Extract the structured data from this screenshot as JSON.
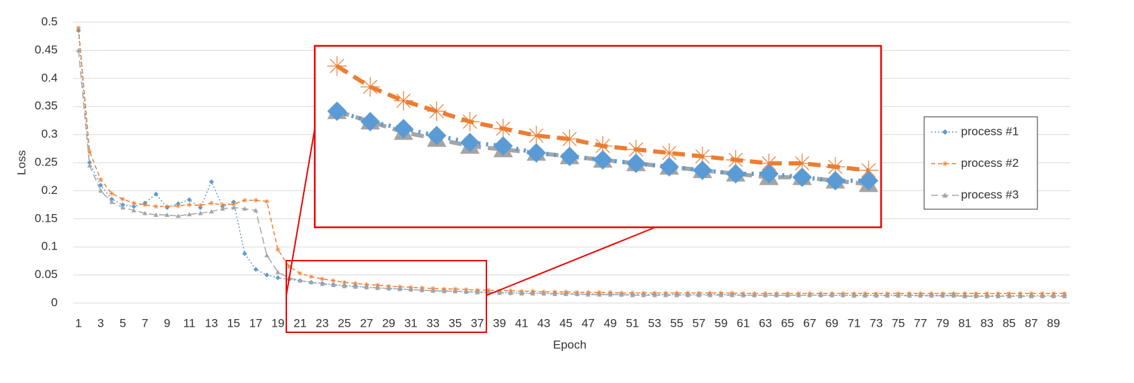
{
  "chart_data": {
    "type": "line",
    "x_label": "Epoch",
    "y_label": "Loss",
    "categories": [
      1,
      null,
      3,
      null,
      5,
      null,
      7,
      null,
      9,
      null,
      11,
      null,
      13,
      null,
      15,
      null,
      17,
      null,
      19,
      null,
      21,
      null,
      23,
      null,
      25,
      null,
      27,
      null,
      29,
      null,
      31,
      null,
      33,
      null,
      35,
      null,
      37,
      null,
      39,
      null,
      41,
      null,
      43,
      null,
      45,
      null,
      47,
      null,
      49,
      null,
      51,
      null,
      53,
      null,
      55,
      null,
      57,
      null,
      59,
      null,
      61,
      null,
      63,
      null,
      65,
      null,
      67,
      null,
      69,
      null,
      71,
      null,
      73,
      null,
      75,
      null,
      77,
      null,
      79,
      null,
      81,
      null,
      83,
      null,
      85,
      null,
      87,
      null,
      89,
      null
    ],
    "ylim": [
      0,
      0.5
    ],
    "yticks": [
      0,
      0.05,
      0.1,
      0.15,
      0.2,
      0.25,
      0.3,
      0.35,
      0.4,
      0.45,
      0.5
    ],
    "grid": true,
    "series": [
      {
        "name": "process #1",
        "color": "#5b9bd5",
        "marker": "diamond",
        "dash": "dotted",
        "values": [
          0.485,
          0.25,
          0.21,
          0.185,
          0.175,
          0.172,
          0.178,
          0.194,
          0.17,
          0.177,
          0.184,
          0.17,
          0.216,
          0.172,
          0.18,
          0.088,
          0.06,
          0.05,
          0.045,
          0.042,
          0.04,
          0.037,
          0.035,
          0.033,
          0.031,
          0.03,
          0.028,
          0.027,
          0.026,
          0.025,
          0.024,
          0.023,
          0.022,
          0.022,
          0.021,
          0.02,
          0.02,
          0.019,
          0.019,
          0.018,
          0.018,
          0.018,
          0.017,
          0.017,
          0.017,
          0.016,
          0.016,
          0.016,
          0.016,
          0.015,
          0.015,
          0.015,
          0.015,
          0.015,
          0.015,
          0.015,
          0.015,
          0.015,
          0.015,
          0.015,
          0.014,
          0.014,
          0.014,
          0.014,
          0.014,
          0.014,
          0.014,
          0.014,
          0.014,
          0.014,
          0.014,
          0.014,
          0.014,
          0.014,
          0.014,
          0.014,
          0.014,
          0.014,
          0.014,
          0.014,
          0.013,
          0.013,
          0.013,
          0.013,
          0.013,
          0.013,
          0.013,
          0.013,
          0.013,
          0.013
        ]
      },
      {
        "name": "process #2",
        "color": "#ed7d31",
        "marker": "asterisk",
        "dash": "dashed",
        "values": [
          0.49,
          0.27,
          0.22,
          0.195,
          0.185,
          0.178,
          0.175,
          0.172,
          0.172,
          0.173,
          0.175,
          0.174,
          0.178,
          0.175,
          0.176,
          0.183,
          0.183,
          0.181,
          0.095,
          0.065,
          0.053,
          0.047,
          0.043,
          0.04,
          0.037,
          0.035,
          0.033,
          0.032,
          0.03,
          0.029,
          0.028,
          0.027,
          0.026,
          0.025,
          0.025,
          0.024,
          0.023,
          0.023,
          0.022,
          0.022,
          0.021,
          0.021,
          0.02,
          0.02,
          0.02,
          0.019,
          0.019,
          0.019,
          0.019,
          0.018,
          0.018,
          0.018,
          0.018,
          0.018,
          0.018,
          0.018,
          0.018,
          0.018,
          0.018,
          0.018,
          0.017,
          0.017,
          0.017,
          0.017,
          0.017,
          0.017,
          0.017,
          0.017,
          0.017,
          0.017,
          0.017,
          0.017,
          0.017,
          0.017,
          0.017,
          0.017,
          0.017,
          0.017,
          0.017,
          0.017,
          0.017,
          0.017,
          0.017,
          0.017,
          0.017,
          0.017,
          0.017,
          0.017,
          0.017,
          0.017
        ]
      },
      {
        "name": "process #3",
        "color": "#a5a5a5",
        "marker": "triangle",
        "dash": "longdash",
        "values": [
          0.45,
          0.245,
          0.2,
          0.18,
          0.17,
          0.165,
          0.16,
          0.157,
          0.157,
          0.155,
          0.158,
          0.16,
          0.163,
          0.168,
          0.17,
          0.168,
          0.165,
          0.085,
          0.055,
          0.045,
          0.04,
          0.037,
          0.034,
          0.032,
          0.03,
          0.029,
          0.028,
          0.027,
          0.026,
          0.025,
          0.024,
          0.023,
          0.022,
          0.021,
          0.021,
          0.02,
          0.019,
          0.019,
          0.018,
          0.018,
          0.017,
          0.017,
          0.017,
          0.016,
          0.016,
          0.016,
          0.015,
          0.015,
          0.015,
          0.015,
          0.014,
          0.014,
          0.014,
          0.014,
          0.014,
          0.014,
          0.014,
          0.014,
          0.014,
          0.014,
          0.014,
          0.014,
          0.014,
          0.014,
          0.014,
          0.014,
          0.014,
          0.014,
          0.014,
          0.014,
          0.013,
          0.013,
          0.013,
          0.013,
          0.013,
          0.013,
          0.013,
          0.013,
          0.013,
          0.013,
          0.012,
          0.012,
          0.012,
          0.012,
          0.012,
          0.012,
          0.012,
          0.012,
          0.012,
          0.012
        ]
      }
    ]
  }
}
